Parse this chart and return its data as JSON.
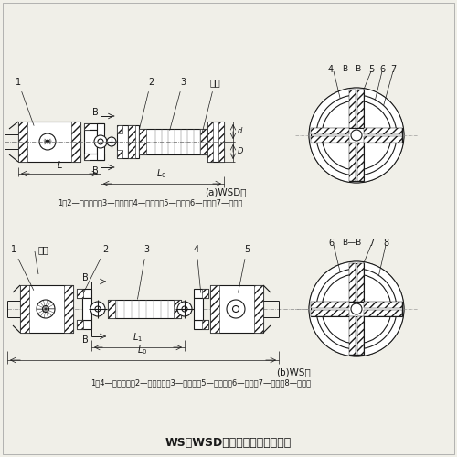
{
  "title": "WS、WSD型十字轴式万向联轴器",
  "bg_color": "#f0efe8",
  "line_color": "#1a1a1a",
  "label_a": "(a)WSD型",
  "label_b": "(b)WS型",
  "caption_a": "1、2—半联轴器；3—圆锥销；4—十字轴；5—销钉；6—套筒；7—圆柱销",
  "caption_b": "1、4—半联轴器；2—又形接头；3—圆锥销；5—十字轴；6—销钉；7—套筒；8—圆柱销"
}
